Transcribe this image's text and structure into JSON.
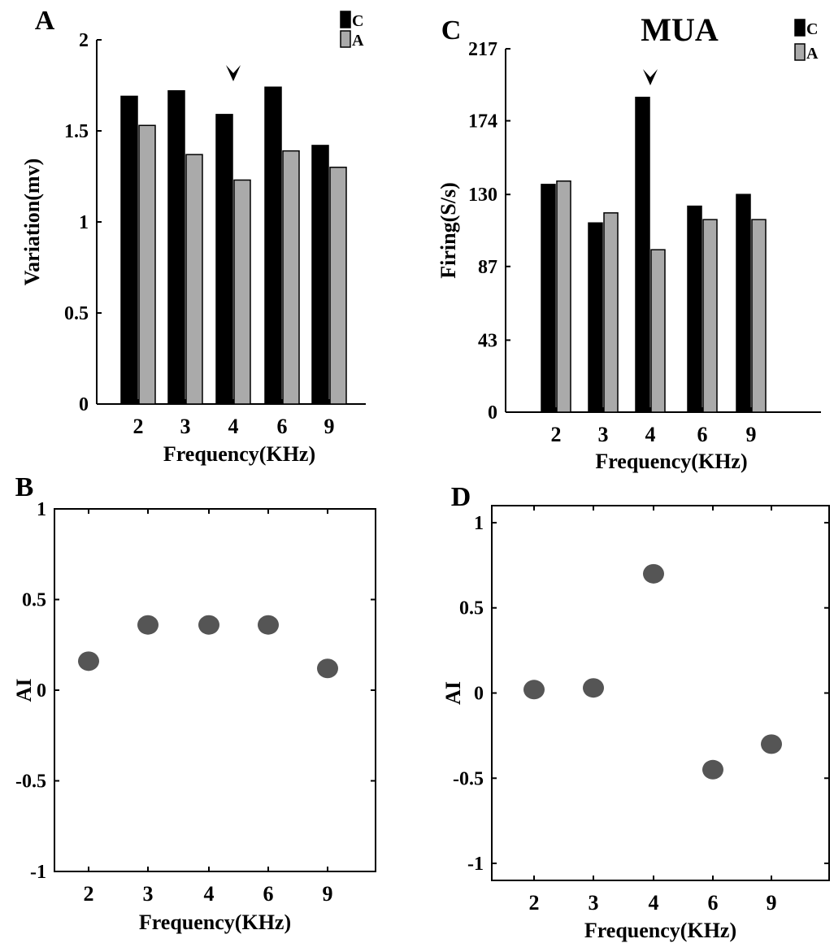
{
  "chart_data": [
    {
      "panel_label": "A",
      "type": "bar",
      "title": "",
      "xlabel": "Frequency(KHz)",
      "ylabel": "Variation(mv)",
      "categories": [
        "2",
        "3",
        "4",
        "6",
        "9"
      ],
      "ylim": [
        0,
        2
      ],
      "yticks": [
        "0",
        "0.5",
        "1",
        "1.5",
        "2"
      ],
      "ytick_values": [
        0,
        0.5,
        1,
        1.5,
        2
      ],
      "series": [
        {
          "name": "C",
          "color": "#000000",
          "values": [
            1.69,
            1.72,
            1.59,
            1.74,
            1.42
          ]
        },
        {
          "name": "A",
          "color": "#aaaaaa",
          "values": [
            1.53,
            1.37,
            1.23,
            1.39,
            1.3
          ]
        }
      ],
      "annotation": {
        "text": "˅",
        "category_index": 2
      },
      "legend": "top-right",
      "grid": false
    },
    {
      "panel_label": "C",
      "type": "bar",
      "title": "MUA",
      "xlabel": "Frequency(KHz)",
      "ylabel": "Firing(S/s)",
      "categories": [
        "2",
        "3",
        "4",
        "6",
        "9"
      ],
      "ylim": [
        0,
        217
      ],
      "yticks": [
        "0",
        "43",
        "87",
        "130",
        "174",
        "217"
      ],
      "ytick_values": [
        0,
        43,
        87,
        130,
        174,
        217
      ],
      "series": [
        {
          "name": "C",
          "color": "#000000",
          "values": [
            136,
            113,
            188,
            123,
            130
          ]
        },
        {
          "name": "A",
          "color": "#aaaaaa",
          "values": [
            138,
            119,
            97,
            115,
            115
          ]
        }
      ],
      "annotation": {
        "text": "˅",
        "category_index": 2
      },
      "legend": "top-right",
      "grid": false
    },
    {
      "panel_label": "B",
      "type": "scatter",
      "title": "",
      "xlabel": "Frequency(KHz)",
      "ylabel": "AI",
      "categories": [
        "2",
        "3",
        "4",
        "6",
        "9"
      ],
      "ylim": [
        -1,
        1
      ],
      "yticks": [
        "-1",
        "-0.5",
        "0",
        "0.5",
        "1"
      ],
      "ytick_values": [
        -1,
        -0.5,
        0,
        0.5,
        1
      ],
      "values": [
        0.16,
        0.36,
        0.36,
        0.36,
        0.12
      ],
      "marker_color": "#555555",
      "grid": false
    },
    {
      "panel_label": "D",
      "type": "scatter",
      "title": "",
      "xlabel": "Frequency(KHz)",
      "ylabel": "AI",
      "categories": [
        "2",
        "3",
        "4",
        "6",
        "9"
      ],
      "ylim": [
        -1.1,
        1.1
      ],
      "yticks": [
        "-1",
        "-0.5",
        "0",
        "0.5",
        "1"
      ],
      "ytick_values": [
        -1,
        -0.5,
        0,
        0.5,
        1
      ],
      "values": [
        0.02,
        0.03,
        0.7,
        -0.45,
        -0.3
      ],
      "marker_color": "#555555",
      "grid": false
    }
  ]
}
